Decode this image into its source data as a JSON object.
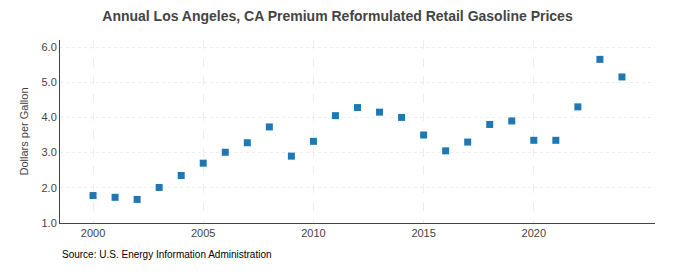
{
  "chart_data": {
    "type": "scatter",
    "title": "Annual Los Angeles, CA Premium Reformulated Retail Gasoline Prices",
    "ylabel": "Dollars per Gallon",
    "annotations": [
      "Source: U.S. Energy Information Administration"
    ],
    "x": [
      2000,
      2001,
      2002,
      2003,
      2004,
      2005,
      2006,
      2007,
      2008,
      2009,
      2010,
      2011,
      2012,
      2013,
      2014,
      2015,
      2016,
      2017,
      2018,
      2019,
      2020,
      2021,
      2022,
      2023,
      2024
    ],
    "values": [
      1.78,
      1.73,
      1.67,
      2.01,
      2.35,
      2.7,
      3.01,
      3.28,
      3.73,
      2.9,
      3.32,
      4.05,
      4.28,
      4.15,
      4.0,
      3.5,
      3.05,
      3.3,
      3.8,
      3.9,
      3.35,
      3.35,
      4.3,
      5.65,
      5.15
    ],
    "marker": "square",
    "xlim": [
      1998.5,
      2025.5
    ],
    "xticks": [
      2000,
      2005,
      2010,
      2015,
      2020
    ],
    "ylim": [
      1.0,
      6.2
    ],
    "yticks": [
      {
        "value": 1.0,
        "label": "1.0"
      },
      {
        "value": 2.0,
        "label": "2.0"
      },
      {
        "value": 3.0,
        "label": "3.0"
      },
      {
        "value": 4.0,
        "label": "4.0"
      },
      {
        "value": 5.0,
        "label": "5.0"
      },
      {
        "value": 6.0,
        "label": "6.0"
      }
    ],
    "grid": true
  }
}
